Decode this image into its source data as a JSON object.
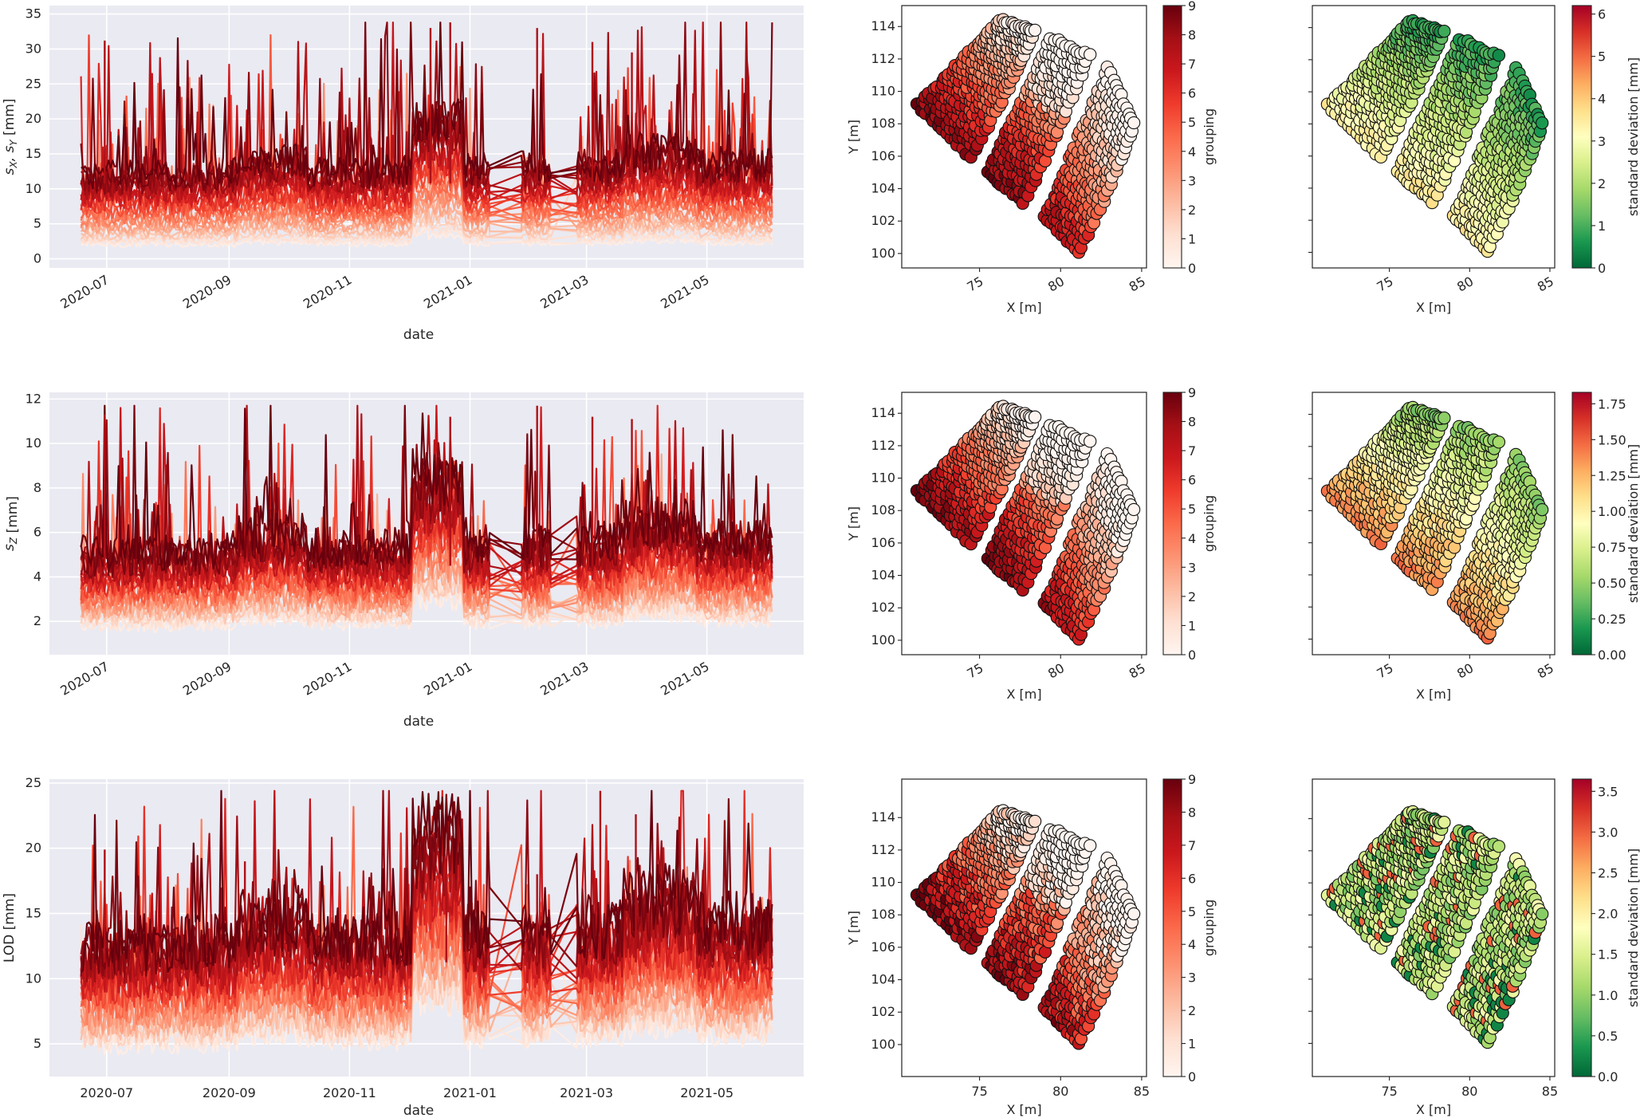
{
  "figure": {
    "rows": [
      {
        "id": "sxy",
        "timeseries": {
          "type": "line",
          "ylabel": "s_X, s_Y [mm]",
          "ylabel_parts": [
            "s",
            "X",
            ", s",
            "Y",
            " [mm]"
          ],
          "xlabel": "date",
          "yticks": [
            0,
            5,
            10,
            15,
            20,
            25,
            30,
            35
          ],
          "ylim": [
            -1.3,
            36.2
          ],
          "xticks": [
            "2020-07",
            "2020-09",
            "2020-11",
            "2021-01",
            "2021-03",
            "2021-05"
          ],
          "xtick_rotation": "rotated",
          "date_range": [
            "2020-06-18",
            "2021-06-03"
          ],
          "band": {
            "low_base": 2.0,
            "high_base": 12.0,
            "high_peak_max": 33.8
          }
        },
        "grouping_map": {
          "type": "scatter",
          "xlabel": "X [m]",
          "ylabel": "Y [m]",
          "xticks": [
            75,
            80,
            85
          ],
          "yticks": [
            100,
            102,
            104,
            106,
            108,
            110,
            112,
            114
          ],
          "xtick_rotation": "rotated",
          "colorbar": {
            "label": "grouping",
            "ticks": [
              0,
              1,
              2,
              3,
              4,
              5,
              6,
              7,
              8,
              9
            ],
            "range": [
              0,
              9
            ],
            "cmap": "Reds"
          }
        },
        "std_map": {
          "type": "scatter",
          "xlabel": "X [m]",
          "xticks": [
            75,
            80,
            85
          ],
          "xtick_rotation": "rotated",
          "colorbar": {
            "label": "standard deviation [mm]",
            "ticks": [
              "0",
              "1",
              "2",
              "3",
              "4",
              "5",
              "6"
            ],
            "range": [
              0,
              6.2
            ],
            "cmap": "RdYlGn_r"
          }
        }
      },
      {
        "id": "sz",
        "timeseries": {
          "type": "line",
          "ylabel": "s_Z [mm]",
          "ylabel_parts": [
            "s",
            "Z",
            "",
            "",
            " [mm]"
          ],
          "xlabel": "date",
          "yticks": [
            2,
            4,
            6,
            8,
            10,
            12
          ],
          "ylim": [
            0.5,
            12.3
          ],
          "xticks": [
            "2020-07",
            "2020-09",
            "2020-11",
            "2021-01",
            "2021-03",
            "2021-05"
          ],
          "xtick_rotation": "rotated",
          "date_range": [
            "2020-06-18",
            "2021-06-03"
          ],
          "band": {
            "low_base": 1.8,
            "high_base": 5.0,
            "high_peak_max": 11.7
          }
        },
        "grouping_map": {
          "type": "scatter",
          "xlabel": "X [m]",
          "ylabel": "Y [m]",
          "xticks": [
            75,
            80,
            85
          ],
          "yticks": [
            100,
            102,
            104,
            106,
            108,
            110,
            112,
            114
          ],
          "xtick_rotation": "rotated",
          "colorbar": {
            "label": "grouping",
            "ticks": [
              0,
              1,
              2,
              3,
              4,
              5,
              6,
              7,
              8,
              9
            ],
            "range": [
              0,
              9
            ],
            "cmap": "Reds"
          }
        },
        "std_map": {
          "type": "scatter",
          "xlabel": "X [m]",
          "xticks": [
            75,
            80,
            85
          ],
          "xtick_rotation": "rotated",
          "colorbar": {
            "label": "standard deviation [mm]",
            "ticks": [
              "0.00",
              "0.25",
              "0.50",
              "0.75",
              "1.00",
              "1.25",
              "1.50",
              "1.75"
            ],
            "range": [
              0,
              1.83
            ],
            "cmap": "RdYlGn_r"
          }
        }
      },
      {
        "id": "lod",
        "timeseries": {
          "type": "line",
          "ylabel": "LOD [mm]",
          "ylabel_parts": [
            "LOD [mm]",
            "",
            "",
            "",
            ""
          ],
          "xlabel": "date",
          "yticks": [
            5,
            10,
            15,
            20,
            25
          ],
          "ylim": [
            2.5,
            25.3
          ],
          "xticks": [
            "2020-07",
            "2020-09",
            "2020-11",
            "2021-01",
            "2021-03",
            "2021-05"
          ],
          "xtick_rotation": "horizontal",
          "date_range": [
            "2020-06-18",
            "2021-06-03"
          ],
          "band": {
            "low_base": 5.0,
            "high_base": 12.5,
            "high_peak_max": 24.4
          }
        },
        "grouping_map": {
          "type": "scatter",
          "xlabel": "X [m]",
          "ylabel": "Y [m]",
          "xticks": [
            75,
            80,
            85
          ],
          "yticks": [
            100,
            102,
            104,
            106,
            108,
            110,
            112,
            114
          ],
          "xtick_rotation": "horizontal",
          "colorbar": {
            "label": "grouping",
            "ticks": [
              0,
              1,
              2,
              3,
              4,
              5,
              6,
              7,
              8,
              9
            ],
            "range": [
              0,
              9
            ],
            "cmap": "Reds"
          }
        },
        "std_map": {
          "type": "scatter",
          "xlabel": "X [m]",
          "xticks": [
            75,
            80,
            85
          ],
          "xtick_rotation": "horizontal",
          "colorbar": {
            "label": "standard deviation [mm]",
            "ticks": [
              "0.0",
              "0.5",
              "1.0",
              "1.5",
              "2.0",
              "2.5",
              "3.0",
              "3.5"
            ],
            "range": [
              0,
              3.65
            ],
            "cmap": "RdYlGn_r"
          }
        }
      }
    ],
    "colors": {
      "ts_background": "#EAEAF2",
      "grid": "#FFFFFF",
      "reds": [
        "#FFF5F0",
        "#FEE0D2",
        "#FCBBA1",
        "#FC9272",
        "#FB6A4A",
        "#EF3B2C",
        "#CB181D",
        "#A50F15",
        "#67000D"
      ],
      "rdylgn_r": [
        "#006837",
        "#1A9850",
        "#66BD63",
        "#A6D96A",
        "#D9EF8B",
        "#FFFFBF",
        "#FEE08B",
        "#FDAE61",
        "#F46D43",
        "#D73027",
        "#A50026"
      ]
    }
  },
  "chart_data": [
    {
      "type": "line",
      "title": "",
      "xlabel": "date",
      "ylabel": "s_X, s_Y [mm]",
      "ylim": [
        0,
        35
      ],
      "x_range": [
        "2020-06-18",
        "2021-06-03"
      ],
      "xtick_labels": [
        "2020-07",
        "2020-09",
        "2020-11",
        "2021-01",
        "2021-03",
        "2021-05"
      ],
      "ytick_labels": [
        "0",
        "5",
        "10",
        "15",
        "20",
        "25",
        "30",
        "35"
      ],
      "grid": true,
      "series_description": "many per-point lines colored by grouping 0-9 (Reds); lightest ~1-3 mm, darkest ~10-15 mm",
      "notable_peaks": [
        {
          "x": "2020-06-30",
          "y": 31.2
        },
        {
          "x": "2020-12-12",
          "y": 33.0
        },
        {
          "x": "2020-12-22",
          "y": 33.8
        },
        {
          "x": "2021-02-04",
          "y": 33.0
        },
        {
          "x": "2021-03-04",
          "y": 31.0
        },
        {
          "x": "2021-03-24",
          "y": 29.5
        }
      ],
      "gaps": [
        [
          "2021-01-10",
          "2021-01-27"
        ],
        [
          "2021-02-10",
          "2021-02-25"
        ]
      ]
    },
    {
      "type": "scatter",
      "xlabel": "X [m]",
      "ylabel": "Y [m]",
      "xlim": [
        70.2,
        85.3
      ],
      "ylim": [
        99.1,
        115.3
      ],
      "xtick_labels": [
        "75",
        "80",
        "85"
      ],
      "ytick_labels": [
        "100",
        "102",
        "104",
        "106",
        "108",
        "110",
        "112",
        "114"
      ],
      "colorbar": {
        "label": "grouping",
        "range": [
          0,
          9
        ]
      },
      "description": "three curved strips of points; darkest (8-9) at lower-left of each strip, lightest (0) at upper-right"
    },
    {
      "type": "scatter",
      "xlabel": "X [m]",
      "xlim": [
        70.2,
        85.3
      ],
      "ylim": [
        99.1,
        115.3
      ],
      "xtick_labels": [
        "75",
        "80",
        "85"
      ],
      "colorbar": {
        "label": "standard deviation [mm]",
        "range": [
          0,
          6.2
        ],
        "ticks": [
          0,
          1,
          2,
          3,
          4,
          5,
          6
        ]
      },
      "description": "std ~0.5 mm (green) at upper-right rising to ~3-4.5 mm (yellow/orange) at lower-left; a few outliers ~5-6 mm"
    },
    {
      "type": "line",
      "xlabel": "date",
      "ylabel": "s_Z [mm]",
      "ylim": [
        0.5,
        12.3
      ],
      "x_range": [
        "2020-06-18",
        "2021-06-03"
      ],
      "xtick_labels": [
        "2020-07",
        "2020-09",
        "2020-11",
        "2021-01",
        "2021-03",
        "2021-05"
      ],
      "ytick_labels": [
        "2",
        "4",
        "6",
        "8",
        "10",
        "12"
      ],
      "grid": true,
      "notable_peaks": [
        {
          "x": "2020-06-30",
          "y": 11.3
        },
        {
          "x": "2020-12-22",
          "y": 11.2
        },
        {
          "x": "2021-02-04",
          "y": 11.7
        },
        {
          "x": "2021-03-04",
          "y": 11.2
        },
        {
          "x": "2021-03-24",
          "y": 11.1
        }
      ]
    },
    {
      "type": "scatter",
      "xlabel": "X [m]",
      "ylabel": "Y [m]",
      "xtick_labels": [
        "75",
        "80",
        "85"
      ],
      "ytick_labels": [
        "100",
        "102",
        "104",
        "106",
        "108",
        "110",
        "112",
        "114"
      ],
      "colorbar": {
        "label": "grouping",
        "range": [
          0,
          9
        ]
      }
    },
    {
      "type": "scatter",
      "xlabel": "X [m]",
      "xtick_labels": [
        "75",
        "80",
        "85"
      ],
      "colorbar": {
        "label": "standard deviation [mm]",
        "range": [
          0,
          1.83
        ],
        "ticks": [
          0.0,
          0.25,
          0.5,
          0.75,
          1.0,
          1.25,
          1.5,
          1.75
        ]
      },
      "description": "std ~0.4-0.6 mm upper-right, ~1.3-1.6 mm lower-left of each strip"
    },
    {
      "type": "line",
      "xlabel": "date",
      "ylabel": "LOD [mm]",
      "ylim": [
        2.5,
        25.3
      ],
      "x_range": [
        "2020-06-18",
        "2021-06-03"
      ],
      "xtick_labels": [
        "2020-07",
        "2020-09",
        "2020-11",
        "2021-01",
        "2021-03",
        "2021-05"
      ],
      "ytick_labels": [
        "5",
        "10",
        "15",
        "20",
        "25"
      ],
      "grid": true,
      "notable_peaks": [
        {
          "x": "2020-06-30",
          "y": 19.9
        },
        {
          "x": "2020-09-09",
          "y": 19.0
        },
        {
          "x": "2020-12-20",
          "y": 19.0
        },
        {
          "x": "2021-02-04",
          "y": 18.0
        },
        {
          "x": "2021-03-08",
          "y": 24.4
        },
        {
          "x": "2021-03-26",
          "y": 22.6
        }
      ]
    },
    {
      "type": "scatter",
      "xlabel": "X [m]",
      "ylabel": "Y [m]",
      "xtick_labels": [
        "75",
        "80",
        "85"
      ],
      "ytick_labels": [
        "100",
        "102",
        "104",
        "106",
        "108",
        "110",
        "112",
        "114"
      ],
      "colorbar": {
        "label": "grouping",
        "range": [
          0,
          9
        ]
      }
    },
    {
      "type": "scatter",
      "xlabel": "X [m]",
      "xtick_labels": [
        "75",
        "80",
        "85"
      ],
      "colorbar": {
        "label": "standard deviation [mm]",
        "range": [
          0,
          3.65
        ],
        "ticks": [
          0.0,
          0.5,
          1.0,
          1.5,
          2.0,
          2.5,
          3.0,
          3.5
        ]
      },
      "description": "mostly 1.0-2.0 mm (yellow-green), dark green ~0.2 mm on borders, orange/red outliers 2.5-3.6 mm"
    }
  ]
}
